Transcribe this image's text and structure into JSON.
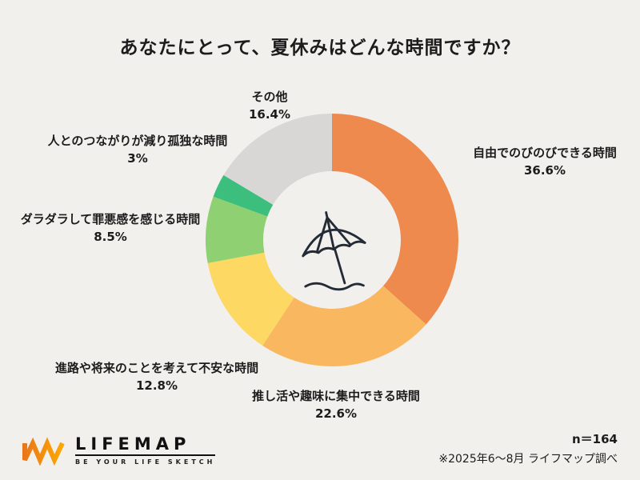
{
  "title": "あなたにとって、夏休みはどんな時間ですか？",
  "chart_data": {
    "type": "pie",
    "subtype": "donut",
    "title": "あなたにとって、夏休みはどんな時間ですか？",
    "start_angle_deg": -90,
    "direction": "clockwise",
    "legend_position": "none",
    "labels_position": "around",
    "center_icon": "beach-umbrella-icon",
    "segments": [
      {
        "label": "自由でのびのびできる時間",
        "value": 36.6,
        "display": "36.6%",
        "color": "#EE8A4D"
      },
      {
        "label": "推し活や趣味に集中できる時間",
        "value": 22.6,
        "display": "22.6%",
        "color": "#F9B85F"
      },
      {
        "label": "進路や将来のことを考えて不安な時間",
        "value": 12.8,
        "display": "12.8%",
        "color": "#FDD862"
      },
      {
        "label": "ダラダラして罪悪感を感じる時間",
        "value": 8.5,
        "display": "8.5%",
        "color": "#8FD072"
      },
      {
        "label": "人とのつながりが減り孤独な時間",
        "value": 3,
        "display": "3%",
        "color": "#3CBE7C"
      },
      {
        "label": "その他",
        "value": 16.4,
        "display": "16.4%",
        "color": "#D8D7D5"
      }
    ]
  },
  "footer": {
    "logo_text": "LIFEMAP",
    "logo_tagline": "BE YOUR LIFE SKETCH",
    "sample_size": "n＝164",
    "source_note": "※2025年6〜8月 ライフマップ調べ"
  }
}
